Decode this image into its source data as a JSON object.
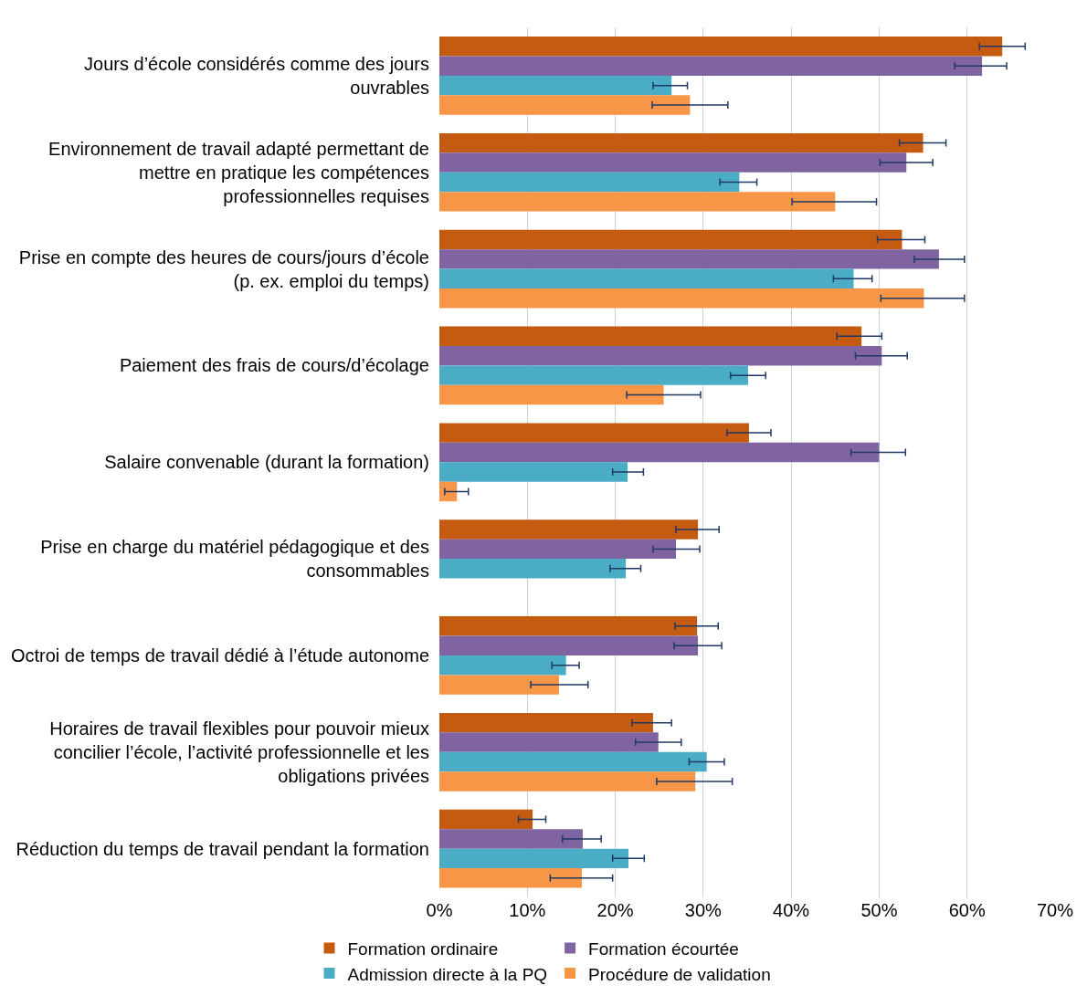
{
  "chart_data": {
    "type": "bar",
    "orientation": "horizontal",
    "categories": [
      "Jours d’école considérés comme des jours\nouvrables",
      "Environnement de travail adapté permettant de\nmettre en pratique les compétences\nprofessionnelles requises",
      "Prise en compte des heures de cours/jours d’école\n(p. ex. emploi du temps)",
      "Paiement des frais de cours/d’écolage",
      "Salaire convenable (durant la formation)",
      "Prise en charge du matériel pédagogique et des\nconsommables",
      "Octroi de temps de travail dédié à l’étude autonome",
      "Horaires de travail flexibles pour pouvoir mieux\nconcilier l’école, l’activité professionnelle et les\nobligations privées",
      "Réduction du temps de travail pendant la formation"
    ],
    "series": [
      {
        "name": "Formation ordinaire",
        "color": "#c55a11",
        "values": [
          64.0,
          55.0,
          52.6,
          48.0,
          35.2,
          29.4,
          29.3,
          24.3,
          10.6
        ],
        "errors": [
          [
            61.4,
            66.6
          ],
          [
            52.3,
            57.6
          ],
          [
            49.8,
            55.2
          ],
          [
            45.2,
            50.3
          ],
          [
            32.7,
            37.7
          ],
          [
            26.9,
            31.8
          ],
          [
            26.8,
            31.7
          ],
          [
            21.9,
            26.4
          ],
          [
            9.0,
            12.1
          ]
        ]
      },
      {
        "name": "Formation écourtée",
        "color": "#8064a2",
        "values": [
          61.7,
          53.1,
          56.8,
          50.3,
          50.0,
          26.9,
          29.4,
          24.9,
          16.3
        ],
        "errors": [
          [
            58.6,
            64.5
          ],
          [
            50.1,
            56.1
          ],
          [
            54.0,
            59.7
          ],
          [
            47.3,
            53.2
          ],
          [
            46.8,
            53.0
          ],
          [
            24.3,
            29.6
          ],
          [
            26.7,
            32.1
          ],
          [
            22.3,
            27.5
          ],
          [
            14.0,
            18.4
          ]
        ]
      },
      {
        "name": "Admission directe à la PQ",
        "color": "#4bacc6",
        "values": [
          26.4,
          34.1,
          47.1,
          35.1,
          21.4,
          21.2,
          14.4,
          30.4,
          21.5
        ],
        "errors": [
          [
            24.3,
            28.2
          ],
          [
            31.9,
            36.1
          ],
          [
            44.8,
            49.2
          ],
          [
            33.1,
            37.1
          ],
          [
            19.7,
            23.2
          ],
          [
            19.4,
            22.9
          ],
          [
            12.8,
            15.9
          ],
          [
            28.4,
            32.4
          ],
          [
            19.7,
            23.3
          ]
        ]
      },
      {
        "name": "Procédure de validation",
        "color": "#f79646",
        "values": [
          28.5,
          45.0,
          55.1,
          25.5,
          2.0,
          null,
          13.6,
          29.1,
          16.2
        ],
        "errors": [
          [
            24.2,
            32.8
          ],
          [
            40.1,
            49.7
          ],
          [
            50.2,
            59.7
          ],
          [
            21.3,
            29.7
          ],
          [
            0.6,
            3.3
          ],
          null,
          [
            10.4,
            16.9
          ],
          [
            24.7,
            33.3
          ],
          [
            12.6,
            19.7
          ]
        ]
      }
    ],
    "xlim": [
      0,
      70
    ],
    "xticks": [
      {
        "value": 0,
        "label": "0%"
      },
      {
        "value": 10,
        "label": "10%"
      },
      {
        "value": 20,
        "label": "20%"
      },
      {
        "value": 30,
        "label": "30%"
      },
      {
        "value": 40,
        "label": "40%"
      },
      {
        "value": 50,
        "label": "50%"
      },
      {
        "value": 60,
        "label": "60%"
      },
      {
        "value": 70,
        "label": "70%"
      }
    ],
    "grid": "x",
    "legend": "bottom"
  }
}
